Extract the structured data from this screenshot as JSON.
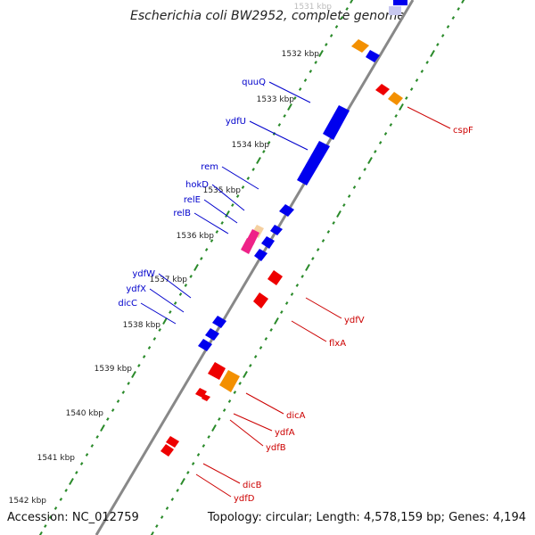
{
  "title": "Escherichia coli BW2952, complete genome",
  "accession_text": "Accession: NC_012759",
  "topology_text": "Topology: circular; Length: 4,578,159 bp; Genes: 4,194",
  "colors": {
    "backbone": "#888888",
    "forward_gene": "#0000ee",
    "reverse_gene": "#ee0000",
    "orange_feature": "#f39000",
    "pink_feature": "#ee2288",
    "yellow_feature": "#f5d0a0",
    "tick": "#2a8a2a",
    "label_forward": "#0000cc",
    "label_reverse": "#cc0000"
  },
  "scale_labels": [
    "1531 kbp",
    "1532 kbp",
    "1533 kbp",
    "1534 kbp",
    "1535 kbp",
    "1536 kbp",
    "1537 kbp",
    "1538 kbp",
    "1539 kbp",
    "1540 kbp",
    "1541 kbp",
    "1542 kbp"
  ],
  "forward_labels": [
    "quuQ",
    "ydfU",
    "rem",
    "hokD",
    "relE",
    "relB",
    "ydfW",
    "ydfX",
    "dicC"
  ],
  "reverse_labels": [
    "cspF",
    "ydfV",
    "flxA",
    "dicA",
    "ydfA",
    "ydfB",
    "dicB",
    "ydfD"
  ]
}
